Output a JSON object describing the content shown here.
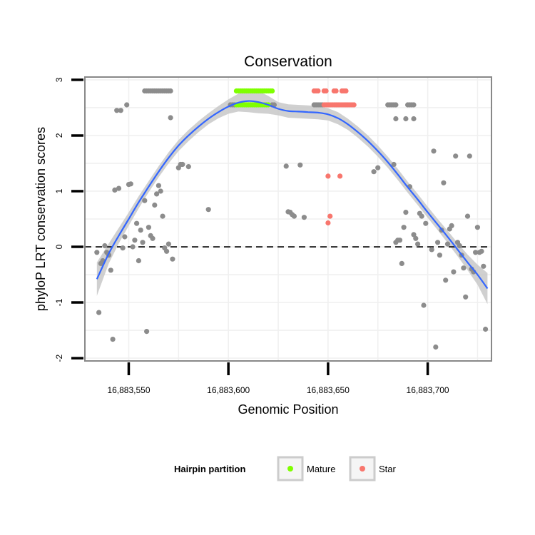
{
  "chart_data": {
    "type": "scatter",
    "title": "Conservation",
    "xlabel": "Genomic Position",
    "ylabel": "phyloP LRT conservation scores",
    "xlim": [
      16883528,
      16883732
    ],
    "ylim": [
      -2.05,
      3.05
    ],
    "x_ticks": [
      {
        "value": 16883550,
        "label": "16,883,550"
      },
      {
        "value": 16883600,
        "label": "16,883,600"
      },
      {
        "value": 16883650,
        "label": "16,883,650"
      },
      {
        "value": 16883700,
        "label": "16,883,700"
      }
    ],
    "y_ticks": [
      {
        "value": -2,
        "label": "-2"
      },
      {
        "value": -1,
        "label": "-1"
      },
      {
        "value": 0,
        "label": "0"
      },
      {
        "value": 1,
        "label": "1"
      },
      {
        "value": 2,
        "label": "2"
      },
      {
        "value": 3,
        "label": "3"
      }
    ],
    "reference_line": {
      "y": 0,
      "style": "dashed"
    },
    "legend": {
      "title": "Hairpin partition",
      "placement": "bottom",
      "entries": [
        {
          "label": "Mature",
          "color": "#7FFF00"
        },
        {
          "label": "Star",
          "color": "#F8766D"
        }
      ]
    },
    "colors": {
      "other": "#8c8c8c",
      "mature": "#7FFF00",
      "star": "#F8766D",
      "smooth": "#3366FF",
      "ribbon": "#c8c8c8"
    },
    "series": [
      {
        "name": "Other",
        "points": [
          [
            16883534,
            -0.1
          ],
          [
            16883535,
            -1.18
          ],
          [
            16883536,
            -0.3
          ],
          [
            16883537,
            -0.25
          ],
          [
            16883538,
            0.02
          ],
          [
            16883539,
            -0.1
          ],
          [
            16883540,
            -0.15
          ],
          [
            16883541,
            -0.42
          ],
          [
            16883542,
            -1.66
          ],
          [
            16883543,
            1.02
          ],
          [
            16883544,
            2.45
          ],
          [
            16883545,
            1.05
          ],
          [
            16883546,
            2.45
          ],
          [
            16883547,
            -0.02
          ],
          [
            16883548,
            0.18
          ],
          [
            16883549,
            2.55
          ],
          [
            16883550,
            1.12
          ],
          [
            16883551,
            1.13
          ],
          [
            16883552,
            0.0
          ],
          [
            16883553,
            0.12
          ],
          [
            16883554,
            0.42
          ],
          [
            16883555,
            -0.25
          ],
          [
            16883556,
            0.3
          ],
          [
            16883557,
            0.08
          ],
          [
            16883558,
            0.83
          ],
          [
            16883559,
            -1.52
          ],
          [
            16883560,
            0.35
          ],
          [
            16883561,
            0.2
          ],
          [
            16883562,
            0.15
          ],
          [
            16883563,
            0.75
          ],
          [
            16883564,
            0.95
          ],
          [
            16883565,
            1.1
          ],
          [
            16883566,
            1.0
          ],
          [
            16883567,
            0.55
          ],
          [
            16883568,
            -0.02
          ],
          [
            16883569,
            -0.08
          ],
          [
            16883570,
            0.05
          ],
          [
            16883571,
            2.32
          ],
          [
            16883572,
            -0.22
          ],
          [
            16883575,
            1.42
          ],
          [
            16883576,
            1.48
          ],
          [
            16883577,
            1.48
          ],
          [
            16883580,
            1.44
          ],
          [
            16883590,
            0.67
          ],
          [
            16883629,
            1.45
          ],
          [
            16883630,
            0.63
          ],
          [
            16883631,
            0.62
          ],
          [
            16883632,
            0.58
          ],
          [
            16883633,
            0.55
          ],
          [
            16883636,
            1.47
          ],
          [
            16883638,
            0.53
          ],
          [
            16883673,
            1.35
          ],
          [
            16883675,
            1.42
          ],
          [
            16883683,
            1.48
          ],
          [
            16883684,
            0.08
          ],
          [
            16883685,
            0.12
          ],
          [
            16883686,
            0.12
          ],
          [
            16883687,
            -0.3
          ],
          [
            16883688,
            0.35
          ],
          [
            16883689,
            0.62
          ],
          [
            16883691,
            1.08
          ],
          [
            16883693,
            0.22
          ],
          [
            16883694,
            0.15
          ],
          [
            16883695,
            0.05
          ],
          [
            16883696,
            0.6
          ],
          [
            16883697,
            0.55
          ],
          [
            16883698,
            -1.05
          ],
          [
            16883699,
            0.42
          ],
          [
            16883702,
            -0.05
          ],
          [
            16883703,
            1.72
          ],
          [
            16883704,
            -1.8
          ],
          [
            16883705,
            0.08
          ],
          [
            16883706,
            -0.15
          ],
          [
            16883707,
            0.3
          ],
          [
            16883708,
            1.15
          ],
          [
            16883709,
            -0.6
          ],
          [
            16883710,
            0.05
          ],
          [
            16883711,
            0.32
          ],
          [
            16883712,
            0.38
          ],
          [
            16883713,
            -0.45
          ],
          [
            16883714,
            1.63
          ],
          [
            16883715,
            0.08
          ],
          [
            16883716,
            0.02
          ],
          [
            16883717,
            -0.15
          ],
          [
            16883718,
            -0.38
          ],
          [
            16883719,
            -0.9
          ],
          [
            16883720,
            0.55
          ],
          [
            16883721,
            1.63
          ],
          [
            16883722,
            -0.4
          ],
          [
            16883723,
            -0.45
          ],
          [
            16883724,
            -0.1
          ],
          [
            16883725,
            0.35
          ],
          [
            16883726,
            -0.1
          ],
          [
            16883727,
            -0.08
          ],
          [
            16883728,
            -0.35
          ],
          [
            16883729,
            -1.48
          ],
          [
            16883601,
            2.55
          ],
          [
            16883602,
            2.55
          ],
          [
            16883603,
            2.55
          ],
          [
            16883622,
            2.55
          ],
          [
            16883623,
            2.55
          ],
          [
            16883643,
            2.55
          ],
          [
            16883644,
            2.55
          ],
          [
            16883645,
            2.55
          ],
          [
            16883646,
            2.55
          ],
          [
            16883647,
            2.55
          ],
          [
            16883680,
            2.55
          ],
          [
            16883681,
            2.55
          ],
          [
            16883682,
            2.55
          ],
          [
            16883683,
            2.55
          ],
          [
            16883684,
            2.55
          ],
          [
            16883690,
            2.55
          ],
          [
            16883691,
            2.55
          ],
          [
            16883692,
            2.55
          ],
          [
            16883693,
            2.55
          ],
          [
            16883684,
            2.3
          ],
          [
            16883689,
            2.3
          ],
          [
            16883693,
            2.3
          ],
          [
            16883558,
            2.8
          ],
          [
            16883559,
            2.8
          ],
          [
            16883560,
            2.8
          ],
          [
            16883561,
            2.8
          ],
          [
            16883562,
            2.8
          ],
          [
            16883563,
            2.8
          ],
          [
            16883564,
            2.8
          ],
          [
            16883565,
            2.8
          ],
          [
            16883566,
            2.8
          ],
          [
            16883567,
            2.8
          ],
          [
            16883568,
            2.8
          ],
          [
            16883569,
            2.8
          ],
          [
            16883570,
            2.8
          ],
          [
            16883571,
            2.8
          ]
        ]
      },
      {
        "name": "Mature",
        "points": [
          [
            16883604,
            2.8
          ],
          [
            16883605,
            2.8
          ],
          [
            16883606,
            2.8
          ],
          [
            16883607,
            2.8
          ],
          [
            16883608,
            2.8
          ],
          [
            16883609,
            2.8
          ],
          [
            16883610,
            2.8
          ],
          [
            16883611,
            2.8
          ],
          [
            16883612,
            2.8
          ],
          [
            16883613,
            2.8
          ],
          [
            16883614,
            2.8
          ],
          [
            16883615,
            2.8
          ],
          [
            16883616,
            2.8
          ],
          [
            16883617,
            2.8
          ],
          [
            16883618,
            2.8
          ],
          [
            16883619,
            2.8
          ],
          [
            16883620,
            2.8
          ],
          [
            16883621,
            2.8
          ],
          [
            16883622,
            2.8
          ],
          [
            16883604,
            2.55
          ],
          [
            16883605,
            2.55
          ],
          [
            16883606,
            2.55
          ],
          [
            16883607,
            2.55
          ],
          [
            16883608,
            2.55
          ],
          [
            16883609,
            2.55
          ],
          [
            16883610,
            2.55
          ],
          [
            16883611,
            2.55
          ],
          [
            16883612,
            2.55
          ],
          [
            16883613,
            2.55
          ],
          [
            16883614,
            2.55
          ],
          [
            16883615,
            2.55
          ],
          [
            16883616,
            2.55
          ],
          [
            16883617,
            2.55
          ],
          [
            16883618,
            2.55
          ],
          [
            16883619,
            2.55
          ],
          [
            16883620,
            2.55
          ]
        ]
      },
      {
        "name": "Star",
        "points": [
          [
            16883643,
            2.8
          ],
          [
            16883644,
            2.8
          ],
          [
            16883645,
            2.8
          ],
          [
            16883648,
            2.8
          ],
          [
            16883649,
            2.8
          ],
          [
            16883653,
            2.8
          ],
          [
            16883654,
            2.8
          ],
          [
            16883657,
            2.8
          ],
          [
            16883658,
            2.8
          ],
          [
            16883659,
            2.8
          ],
          [
            16883648,
            2.55
          ],
          [
            16883649,
            2.55
          ],
          [
            16883650,
            2.55
          ],
          [
            16883651,
            2.55
          ],
          [
            16883652,
            2.55
          ],
          [
            16883653,
            2.55
          ],
          [
            16883654,
            2.55
          ],
          [
            16883655,
            2.55
          ],
          [
            16883656,
            2.55
          ],
          [
            16883657,
            2.55
          ],
          [
            16883658,
            2.55
          ],
          [
            16883659,
            2.55
          ],
          [
            16883660,
            2.55
          ],
          [
            16883661,
            2.55
          ],
          [
            16883662,
            2.55
          ],
          [
            16883663,
            2.55
          ],
          [
            16883650,
            1.27
          ],
          [
            16883656,
            1.27
          ],
          [
            16883651,
            0.55
          ],
          [
            16883650,
            0.43
          ]
        ]
      }
    ],
    "smooth": {
      "x": [
        16883534,
        16883540,
        16883545,
        16883550,
        16883555,
        16883560,
        16883565,
        16883570,
        16883575,
        16883580,
        16883585,
        16883590,
        16883595,
        16883600,
        16883605,
        16883610,
        16883615,
        16883620,
        16883625,
        16883630,
        16883635,
        16883640,
        16883645,
        16883650,
        16883655,
        16883660,
        16883665,
        16883670,
        16883675,
        16883680,
        16883685,
        16883690,
        16883695,
        16883700,
        16883705,
        16883710,
        16883715,
        16883720,
        16883725,
        16883730
      ],
      "y": [
        -0.58,
        -0.12,
        0.2,
        0.5,
        0.8,
        1.08,
        1.35,
        1.6,
        1.82,
        2.0,
        2.16,
        2.3,
        2.42,
        2.52,
        2.59,
        2.62,
        2.6,
        2.55,
        2.48,
        2.44,
        2.43,
        2.42,
        2.41,
        2.38,
        2.31,
        2.2,
        2.06,
        1.9,
        1.72,
        1.52,
        1.3,
        1.07,
        0.85,
        0.62,
        0.4,
        0.18,
        -0.05,
        -0.28,
        -0.5,
        -0.75
      ],
      "band": [
        0.3,
        0.18,
        0.14,
        0.12,
        0.11,
        0.1,
        0.1,
        0.1,
        0.1,
        0.1,
        0.1,
        0.1,
        0.11,
        0.13,
        0.16,
        0.2,
        0.2,
        0.16,
        0.12,
        0.12,
        0.12,
        0.12,
        0.12,
        0.11,
        0.11,
        0.1,
        0.1,
        0.1,
        0.1,
        0.1,
        0.1,
        0.1,
        0.1,
        0.1,
        0.1,
        0.11,
        0.12,
        0.14,
        0.18,
        0.28
      ]
    }
  }
}
